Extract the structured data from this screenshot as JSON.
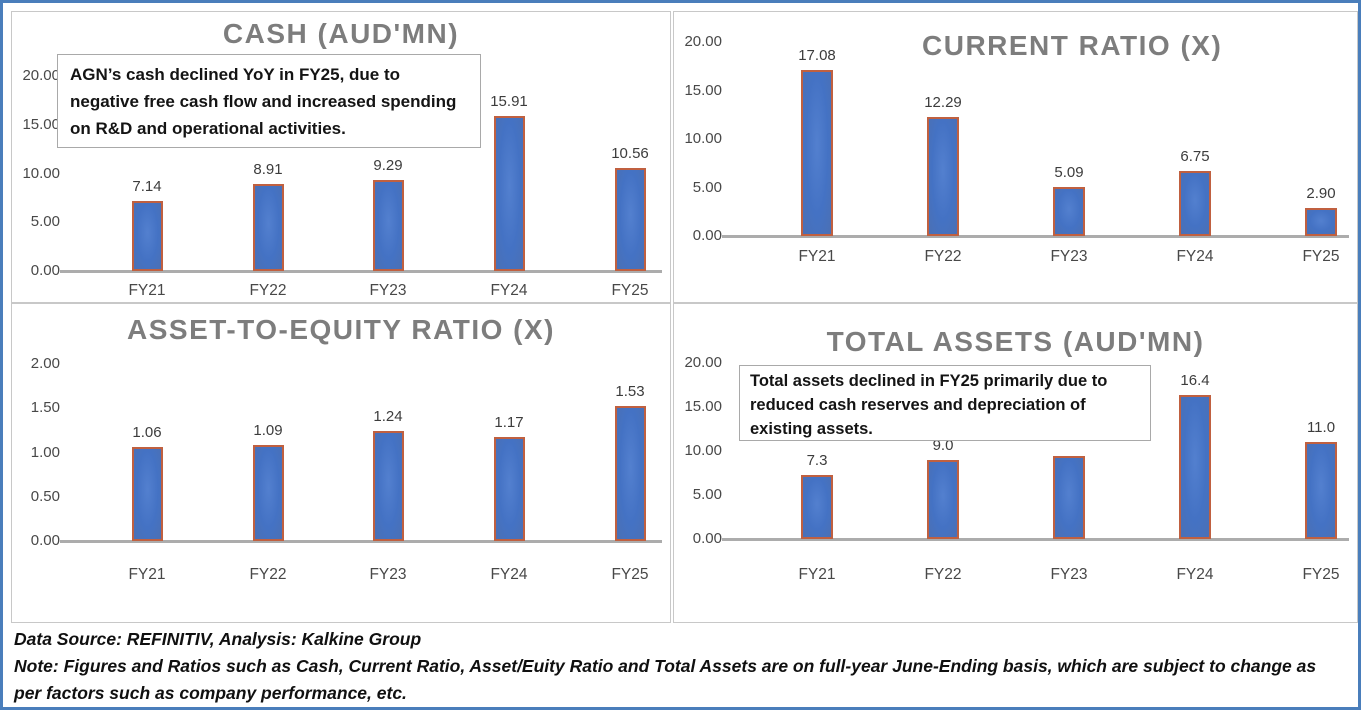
{
  "chart_data": [
    {
      "type": "bar",
      "title": "CASH (AUD'MN)",
      "categories": [
        "FY21",
        "FY22",
        "FY23",
        "FY24",
        "FY25"
      ],
      "values": [
        7.14,
        8.91,
        9.29,
        15.91,
        10.56
      ],
      "data_labels": [
        "7.14",
        "8.91",
        "9.29",
        "15.91",
        "10.56"
      ],
      "ylim": [
        0,
        20
      ],
      "y_tick_values": [
        0,
        5,
        10,
        15,
        20
      ],
      "y_tick_labels": [
        "0.00",
        "5.00",
        "10.00",
        "15.00",
        "20.00"
      ],
      "grid": false,
      "legend": "none",
      "callout": "AGN’s cash  declined YoY in FY25, due to negative free cash flow and increased spending on R&D and operational activities."
    },
    {
      "type": "bar",
      "title": "CURRENT RATIO (X)",
      "categories": [
        "FY21",
        "FY22",
        "FY23",
        "FY24",
        "FY25"
      ],
      "values": [
        17.08,
        12.29,
        5.09,
        6.75,
        2.9
      ],
      "data_labels": [
        "17.08",
        "12.29",
        "5.09",
        "6.75",
        "2.90"
      ],
      "ylim": [
        0,
        20
      ],
      "y_tick_values": [
        0,
        5,
        10,
        15,
        20
      ],
      "y_tick_labels": [
        "0.00",
        "5.00",
        "10.00",
        "15.00",
        "20.00"
      ],
      "grid": false,
      "legend": "none",
      "callout": null
    },
    {
      "type": "bar",
      "title": "ASSET-TO-EQUITY RATIO (X)",
      "categories": [
        "FY21",
        "FY22",
        "FY23",
        "FY24",
        "FY25"
      ],
      "values": [
        1.06,
        1.09,
        1.24,
        1.17,
        1.53
      ],
      "data_labels": [
        "1.06",
        "1.09",
        "1.24",
        "1.17",
        "1.53"
      ],
      "ylim": [
        0,
        2
      ],
      "y_tick_values": [
        0,
        0.5,
        1,
        1.5,
        2
      ],
      "y_tick_labels": [
        "0.00",
        "0.50",
        "1.00",
        "1.50",
        "2.00"
      ],
      "grid": false,
      "legend": "none",
      "callout": null
    },
    {
      "type": "bar",
      "title": "TOTAL ASSETS (AUD'MN)",
      "categories": [
        "FY21",
        "FY22",
        "FY23",
        "FY24",
        "FY25"
      ],
      "values": [
        7.3,
        9.0,
        9.4,
        16.4,
        11.0
      ],
      "data_labels": [
        "7.3",
        "9.0",
        "",
        "16.4",
        "11.0"
      ],
      "ylim": [
        0,
        20
      ],
      "y_tick_values": [
        0,
        5,
        10,
        15,
        20
      ],
      "y_tick_labels": [
        "0.00",
        "5.00",
        "10.00",
        "15.00",
        "20.00"
      ],
      "grid": false,
      "legend": "none",
      "callout": "Total assets declined in FY25 primarily due to reduced cash reserves and depreciation of existing assets."
    }
  ],
  "footer": {
    "source": "Data Source: REFINITIV, Analysis: Kalkine Group",
    "note": "Note: Figures and Ratios such as Cash, Current Ratio, Asset/Euity Ratio and Total Assets are on full-year June-Ending basis, which are subject to change as per factors such as company performance, etc."
  },
  "colors": {
    "bar_fill": "#4472C4",
    "bar_border": "#C06040",
    "frame_border": "#4A7EBB",
    "panel_border": "#C8C8C8",
    "axis_line": "#ACACAC",
    "title_text": "#7D7D7D",
    "label_text": "#3C3C3C",
    "footer_text": "#101010"
  }
}
